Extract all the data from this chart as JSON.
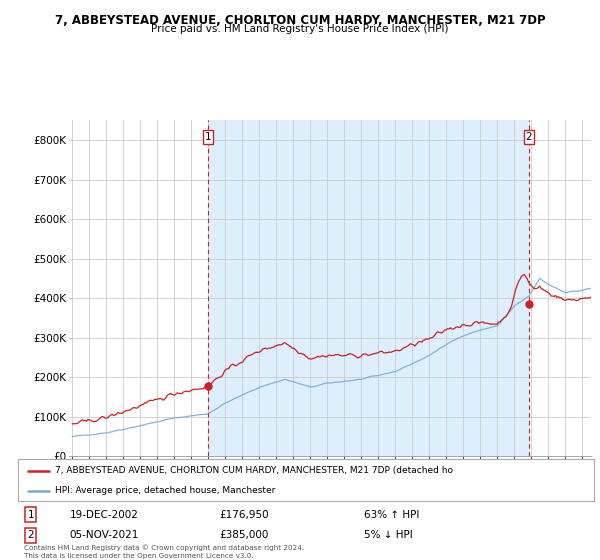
{
  "title_line1": "7, ABBEYSTEAD AVENUE, CHORLTON CUM HARDY, MANCHESTER, M21 7DP",
  "title_line2": "Price paid vs. HM Land Registry's House Price Index (HPI)",
  "sale1_date": "19-DEC-2002",
  "sale1_price": 176950,
  "sale1_pct": "63% ↑ HPI",
  "sale2_date": "05-NOV-2021",
  "sale2_price": 385000,
  "sale2_pct": "5% ↓ HPI",
  "sale1_x": 2002.97,
  "sale2_x": 2021.84,
  "legend_line1": "7, ABBEYSTEAD AVENUE, CHORLTON CUM HARDY, MANCHESTER, M21 7DP (detached ho",
  "legend_line2": "HPI: Average price, detached house, Manchester",
  "footer_line1": "Contains HM Land Registry data © Crown copyright and database right 2024.",
  "footer_line2": "This data is licensed under the Open Government Licence v3.0.",
  "hpi_color": "#7aaad0",
  "price_color": "#cc2222",
  "vline_color": "#cc2222",
  "shade_color": "#ddeeff",
  "ylim_max": 850000,
  "xmin": 1995,
  "xmax": 2025.5,
  "background_color": "#ffffff",
  "grid_color": "#cccccc"
}
